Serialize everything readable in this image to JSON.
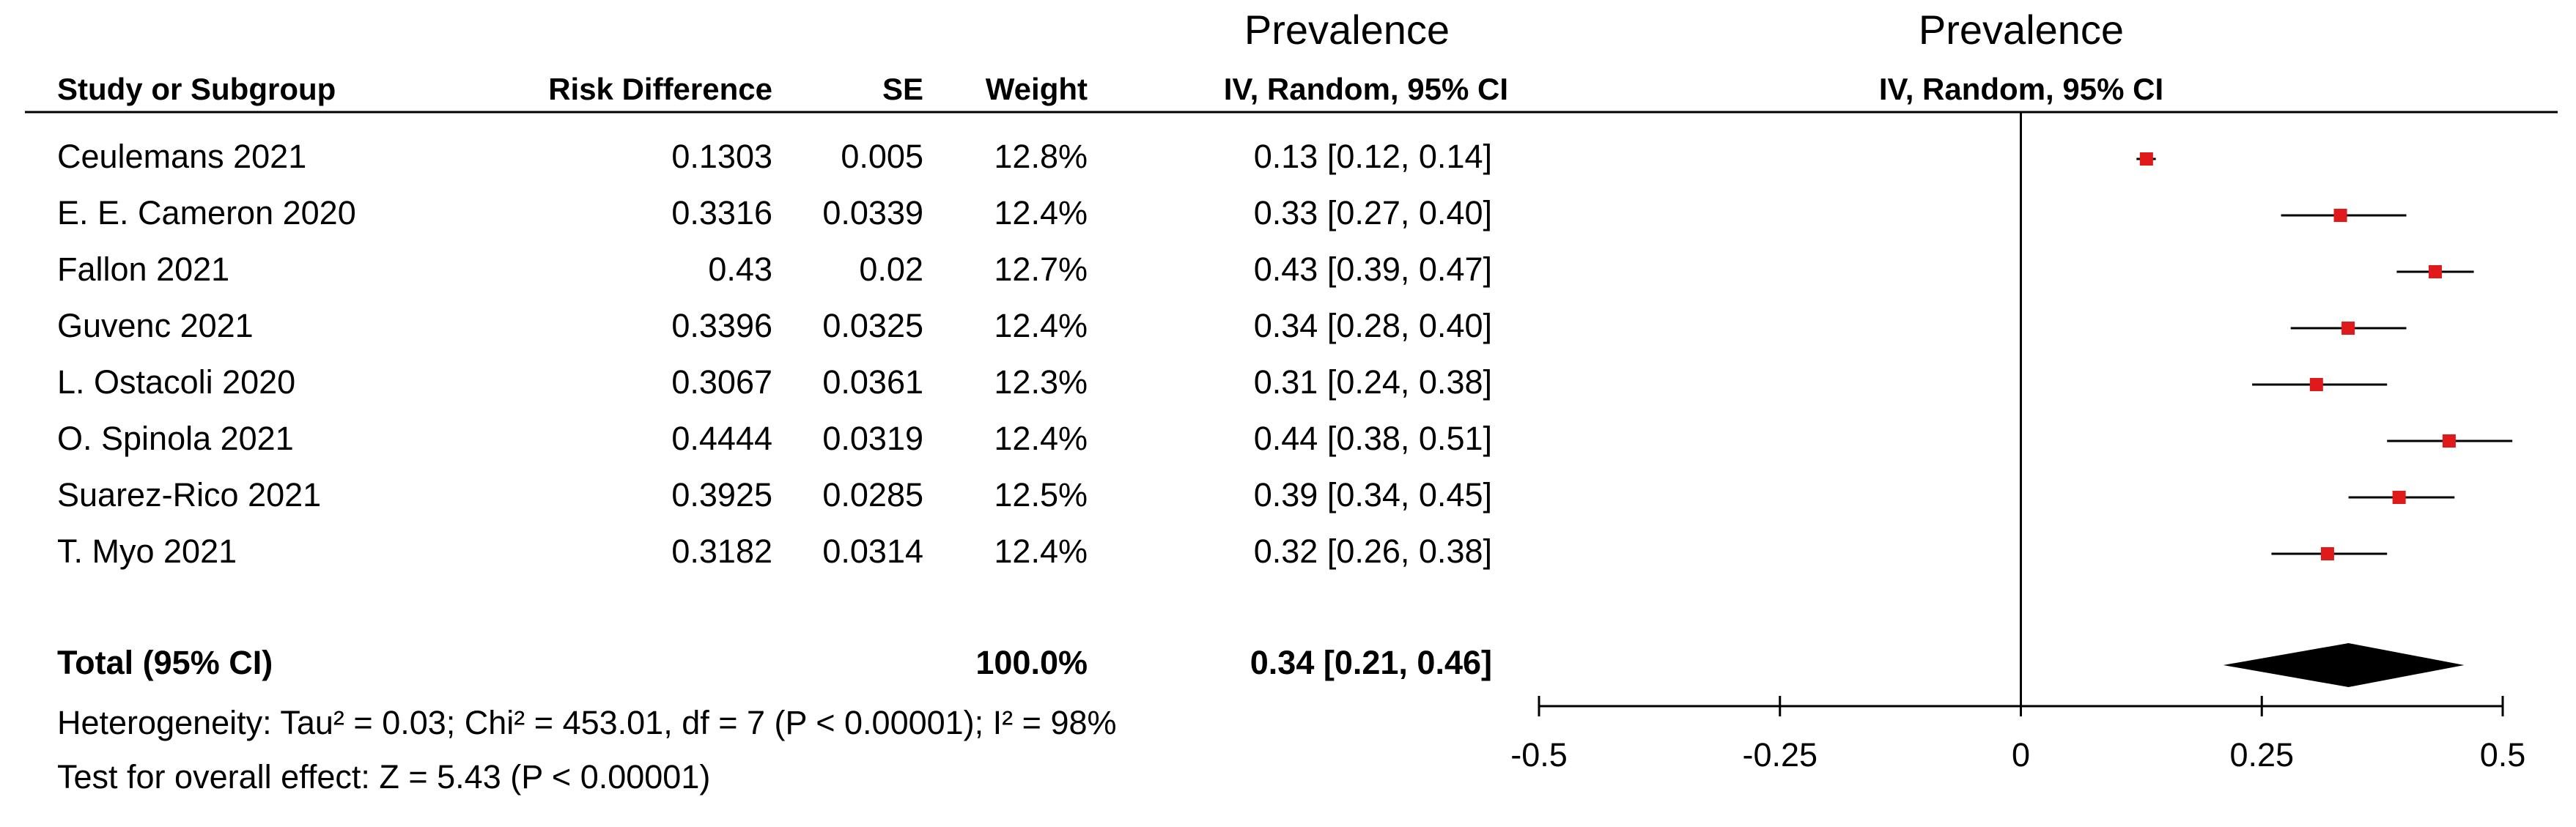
{
  "chart_data": {
    "type": "forest",
    "columns": [
      "Study or Subgroup",
      "Risk Difference",
      "SE",
      "Weight"
    ],
    "ci_header_title": "Prevalence",
    "ci_header": "IV, Random, 95% CI",
    "plot_title": "Prevalence",
    "plot_subtitle": "IV, Random, 95% CI",
    "studies": [
      {
        "name": "Ceulemans 2021",
        "risk_difference": 0.1303,
        "se": 0.005,
        "weight": {
          "value": 12.8,
          "label": "12.8%"
        },
        "ci_label": "0.13 [0.12, 0.14]",
        "ci_lower": 0.12,
        "ci_upper": 0.14
      },
      {
        "name": "E. E. Cameron 2020",
        "risk_difference": 0.3316,
        "se": 0.0339,
        "weight": {
          "value": 12.4,
          "label": "12.4%"
        },
        "ci_label": "0.33 [0.27, 0.40]",
        "ci_lower": 0.27,
        "ci_upper": 0.4
      },
      {
        "name": "Fallon 2021",
        "risk_difference": 0.43,
        "se": 0.02,
        "weight": {
          "value": 12.7,
          "label": "12.7%"
        },
        "ci_label": "0.43 [0.39, 0.47]",
        "ci_lower": 0.39,
        "ci_upper": 0.47
      },
      {
        "name": "Guvenc 2021",
        "risk_difference": 0.3396,
        "se": 0.0325,
        "weight": {
          "value": 12.4,
          "label": "12.4%"
        },
        "ci_label": "0.34 [0.28, 0.40]",
        "ci_lower": 0.28,
        "ci_upper": 0.4
      },
      {
        "name": "L. Ostacoli 2020",
        "risk_difference": 0.3067,
        "se": 0.0361,
        "weight": {
          "value": 12.3,
          "label": "12.3%"
        },
        "ci_label": "0.31 [0.24, 0.38]",
        "ci_lower": 0.24,
        "ci_upper": 0.38
      },
      {
        "name": "O. Spinola 2021",
        "risk_difference": 0.4444,
        "se": 0.0319,
        "weight": {
          "value": 12.4,
          "label": "12.4%"
        },
        "ci_label": "0.44 [0.38, 0.51]",
        "ci_lower": 0.38,
        "ci_upper": 0.51
      },
      {
        "name": "Suarez-Rico 2021",
        "risk_difference": 0.3925,
        "se": 0.0285,
        "weight": {
          "value": 12.5,
          "label": "12.5%"
        },
        "ci_label": "0.39 [0.34, 0.45]",
        "ci_lower": 0.34,
        "ci_upper": 0.45
      },
      {
        "name": "T. Myo 2021",
        "risk_difference": 0.3182,
        "se": 0.0314,
        "weight": {
          "value": 12.4,
          "label": "12.4%"
        },
        "ci_label": "0.32 [0.26, 0.38]",
        "ci_lower": 0.26,
        "ci_upper": 0.38
      }
    ],
    "total": {
      "name": "Total (95% CI)",
      "weight": {
        "value": 100,
        "label": "100.0%"
      },
      "ci_label": "0.34 [0.21, 0.46]",
      "estimate": 0.34,
      "ci_lower": 0.21,
      "ci_upper": 0.46
    },
    "heterogeneity": "Heterogeneity: Tau² = 0.03; Chi² = 453.01, df = 7 (P < 0.00001); I² = 98%",
    "overall_effect": "Test for overall effect: Z = 5.43 (P < 0.00001)",
    "xlim": [
      -0.5,
      0.5
    ],
    "xticks": [
      -0.5,
      -0.25,
      0,
      0.25,
      0.5
    ],
    "marker_color": "#e0191b",
    "diamond_color": "#000000"
  }
}
